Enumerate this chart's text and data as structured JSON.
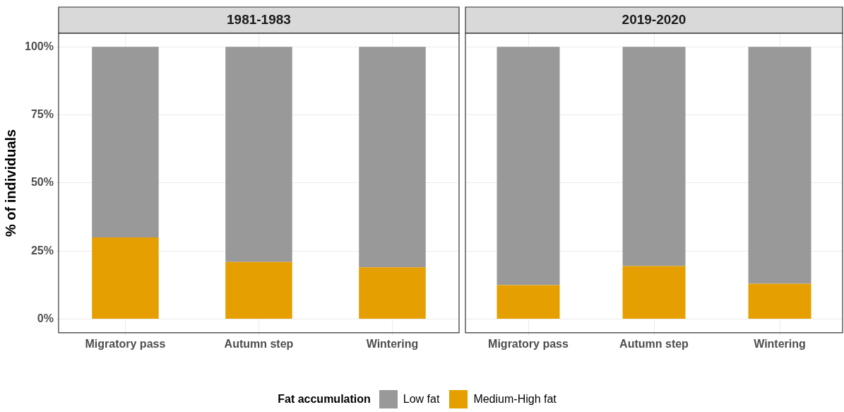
{
  "chart_data": [
    {
      "type": "bar",
      "title": "1981-1983",
      "ylabel": "% of individuals",
      "categories": [
        "Migratory pass",
        "Autumn step",
        "Wintering"
      ],
      "stacked": true,
      "series": [
        {
          "name": "Medium-High fat",
          "color": "#e69f00",
          "values": [
            30,
            21,
            19
          ]
        },
        {
          "name": "Low fat",
          "color": "#999999",
          "values": [
            70,
            79,
            81
          ]
        }
      ],
      "ylim": [
        -5,
        105
      ],
      "yticks": [
        {
          "value": 0,
          "label": "0%"
        },
        {
          "value": 25,
          "label": "25%"
        },
        {
          "value": 50,
          "label": "50%"
        },
        {
          "value": 75,
          "label": "75%"
        },
        {
          "value": 100,
          "label": "100%"
        }
      ],
      "grid": true,
      "legend": "bottom",
      "legend_title": "Fat accumulation"
    },
    {
      "type": "bar",
      "title": "2019-2020",
      "categories": [
        "Migratory pass",
        "Autumn step",
        "Wintering"
      ],
      "stacked": true,
      "series": [
        {
          "color": "#e69f00",
          "values": [
            12.5,
            19.5,
            13
          ]
        },
        {
          "color": "#999999",
          "values": [
            87.5,
            80.5,
            87
          ]
        }
      ],
      "ylim": [
        -5,
        105
      ],
      "yticks": [
        {
          "value": 0,
          "label": null
        },
        {
          "value": 25,
          "label": null
        },
        {
          "value": 50,
          "label": null
        },
        {
          "value": 75,
          "label": null
        },
        {
          "value": 100,
          "label": null
        }
      ],
      "grid": true,
      "tick_labels": "x"
    }
  ]
}
